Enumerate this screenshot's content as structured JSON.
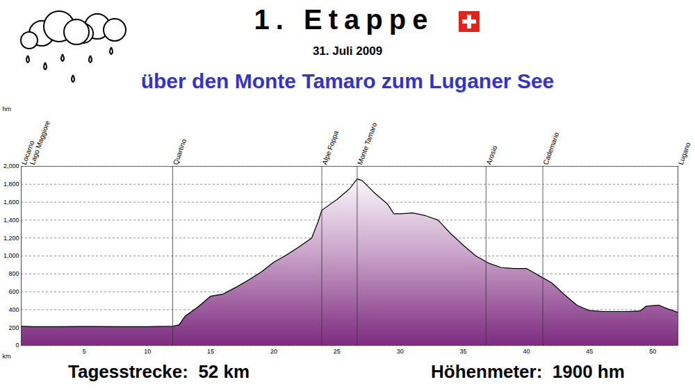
{
  "chart_data": {
    "type": "area",
    "title": "1. Etappe",
    "date": "31. Juli 2009",
    "subtitle": "über den Monte Tamaro zum Luganer See",
    "x_label": "km",
    "y_label": "hm",
    "color": "#7d2b7f",
    "grid": true,
    "x": [
      0,
      1,
      3,
      5,
      8,
      10,
      12,
      12.5,
      13,
      14,
      15,
      16,
      17,
      18,
      19,
      20,
      21,
      22,
      23,
      23.5,
      23.8,
      24,
      25,
      26,
      26.6,
      27,
      28,
      29,
      29.5,
      30,
      31,
      32,
      33,
      34,
      35,
      36,
      37,
      38,
      39,
      40,
      41,
      42,
      43,
      44,
      45,
      46,
      48,
      49,
      49.5,
      50.5,
      51,
      52
    ],
    "values": [
      215,
      210,
      210,
      212,
      210,
      210,
      215,
      230,
      330,
      430,
      550,
      575,
      650,
      730,
      820,
      930,
      1010,
      1100,
      1200,
      1380,
      1510,
      1530,
      1630,
      1750,
      1860,
      1840,
      1700,
      1580,
      1470,
      1470,
      1480,
      1450,
      1400,
      1250,
      1120,
      1000,
      920,
      870,
      860,
      860,
      780,
      700,
      570,
      450,
      390,
      380,
      380,
      385,
      440,
      450,
      420,
      370
    ],
    "xlim": [
      0,
      52
    ],
    "xticks": [
      5,
      10,
      15,
      20,
      25,
      30,
      35,
      40,
      45,
      50
    ],
    "ylim": [
      0,
      2000
    ],
    "yticks": [
      0,
      200,
      400,
      600,
      800,
      1000,
      1200,
      1400,
      1600,
      1800,
      2000
    ],
    "annotations": [
      {
        "x": 0,
        "label": "Locarno",
        "sublabel": "Lago Maggiore"
      },
      {
        "x": 12,
        "label": "Quartino"
      },
      {
        "x": 23.8,
        "label": "Alpe Foppa"
      },
      {
        "x": 26.6,
        "label": "Monte Tamaro"
      },
      {
        "x": 36.8,
        "label": "Arosio"
      },
      {
        "x": 41.3,
        "label": "Cademario"
      },
      {
        "x": 52,
        "label": "Lugano"
      }
    ],
    "footer": [
      "Tagesstrecke:  52 km",
      "Höhenmeter:  1900 hm"
    ]
  }
}
